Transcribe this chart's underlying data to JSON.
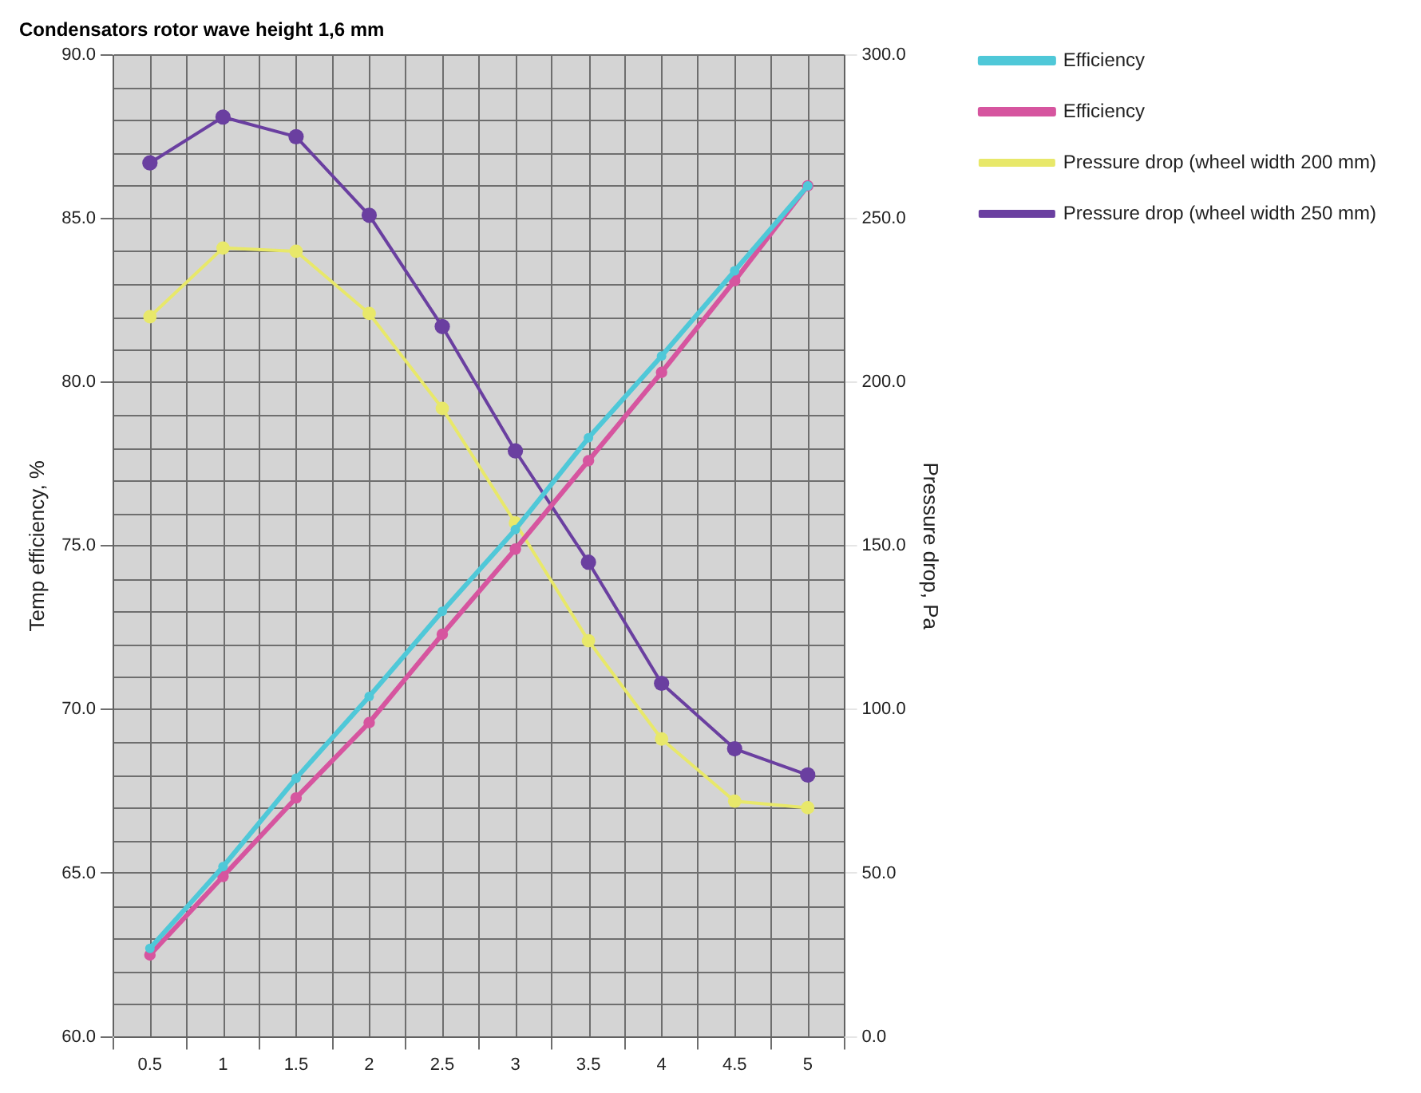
{
  "chart_data": {
    "type": "line",
    "title": "Condensators rotor wave height 1,6 mm",
    "ylabel": "Temp efficiency, %",
    "y2label": "Pressure drop, Pa",
    "categories": [
      "0.5",
      "1",
      "1.5",
      "2",
      "2.5",
      "3",
      "3.5",
      "4",
      "4.5",
      "5"
    ],
    "series": [
      {
        "name": "Efficiency",
        "color": "#4fc8d8",
        "values": [
          62.7,
          65.2,
          67.9,
          70.4,
          73.0,
          75.5,
          78.3,
          80.8,
          83.4,
          86.0
        ]
      },
      {
        "name": "Efficiency",
        "color": "#d6559f",
        "values": [
          62.5,
          64.9,
          67.3,
          69.6,
          72.3,
          74.9,
          77.6,
          80.3,
          83.1,
          86.0
        ]
      },
      {
        "name": "Pressure drop (wheel width 200 mm)",
        "color": "#e8e86a",
        "axis": "y2",
        "values": [
          220,
          241,
          240,
          221,
          192,
          157,
          121,
          91,
          72,
          70
        ]
      },
      {
        "name": "Pressure drop (wheel width 250 mm)",
        "color": "#6a3fa0",
        "axis": "y2",
        "values": [
          267,
          281,
          275,
          251,
          217,
          179,
          145,
          108,
          88,
          80
        ]
      }
    ],
    "ylim": [
      60,
      90
    ],
    "yticks": [
      {
        "value": 60,
        "label": "60.0"
      },
      {
        "value": 65,
        "label": "65.0"
      },
      {
        "value": 70,
        "label": "70.0"
      },
      {
        "value": 75,
        "label": "75.0"
      },
      {
        "value": 80,
        "label": "80.0"
      },
      {
        "value": 85,
        "label": "85.0"
      },
      {
        "value": 90,
        "label": "90.0"
      }
    ],
    "y2lim": [
      0,
      300
    ],
    "y2ticks": [
      {
        "value": 0,
        "label": "0.0"
      },
      {
        "value": 50,
        "label": "50.0"
      },
      {
        "value": 100,
        "label": "100.0"
      },
      {
        "value": 150,
        "label": "150.0"
      },
      {
        "value": 200,
        "label": "200.0"
      },
      {
        "value": 250,
        "label": "250.0"
      },
      {
        "value": 300,
        "label": "300.0"
      }
    ],
    "grid": true,
    "legend": "right",
    "marker": "circle",
    "line_style": "solid"
  }
}
